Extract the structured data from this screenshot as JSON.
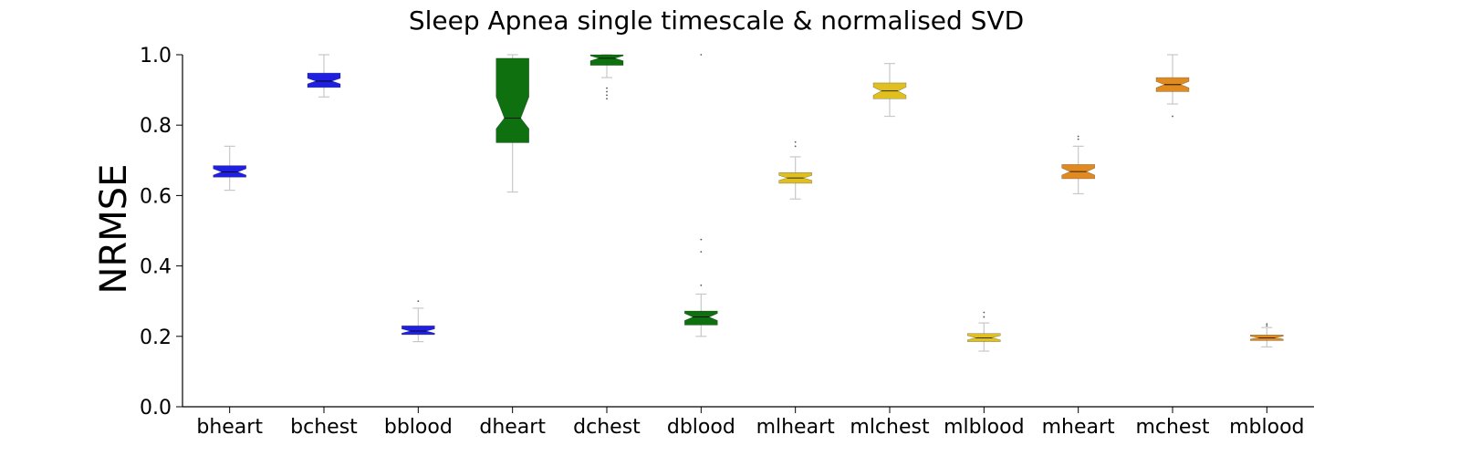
{
  "chart_data": {
    "type": "box",
    "title": "Sleep Apnea single timescale & normalised SVD",
    "ylabel": "NRMSE",
    "xlabel": "",
    "ylim": [
      0.0,
      1.0
    ],
    "yticks": [
      0.0,
      0.2,
      0.4,
      0.6,
      0.8,
      1.0
    ],
    "ytick_labels": [
      "0.0",
      "0.2",
      "0.4",
      "0.6",
      "0.8",
      "1.0"
    ],
    "notched": true,
    "grid": false,
    "categories": [
      "bheart",
      "bchest",
      "bblood",
      "dheart",
      "dchest",
      "dblood",
      "mlheart",
      "mlchest",
      "mlblood",
      "mheart",
      "mchest",
      "mblood"
    ],
    "boxes": [
      {
        "category": "bheart",
        "color": "#2020e0",
        "whislo": 0.615,
        "q1": 0.652,
        "med": 0.667,
        "q3": 0.685,
        "whishi": 0.74,
        "notch_lo": 0.658,
        "notch_hi": 0.676,
        "fliers": []
      },
      {
        "category": "bchest",
        "color": "#2020e0",
        "whislo": 0.88,
        "q1": 0.907,
        "med": 0.925,
        "q3": 0.948,
        "whishi": 1.0,
        "notch_lo": 0.917,
        "notch_hi": 0.933,
        "fliers": []
      },
      {
        "category": "bblood",
        "color": "#2020e0",
        "whislo": 0.185,
        "q1": 0.205,
        "med": 0.215,
        "q3": 0.23,
        "whishi": 0.28,
        "notch_lo": 0.209,
        "notch_hi": 0.221,
        "fliers": [
          0.3
        ]
      },
      {
        "category": "dheart",
        "color": "#0f7010",
        "whislo": 0.61,
        "q1": 0.75,
        "med": 0.82,
        "q3": 0.99,
        "whishi": 1.0,
        "notch_lo": 0.79,
        "notch_hi": 0.88,
        "fliers": []
      },
      {
        "category": "dchest",
        "color": "#0f7010",
        "whislo": 0.935,
        "q1": 0.97,
        "med": 0.99,
        "q3": 1.0,
        "whishi": 1.0,
        "notch_lo": 0.983,
        "notch_hi": 0.997,
        "fliers": [
          0.905,
          0.895,
          0.885,
          0.875
        ]
      },
      {
        "category": "dblood",
        "color": "#0f7010",
        "whislo": 0.2,
        "q1": 0.232,
        "med": 0.255,
        "q3": 0.272,
        "whishi": 0.32,
        "notch_lo": 0.245,
        "notch_hi": 0.265,
        "fliers": [
          0.345,
          0.44,
          0.475,
          1.0
        ]
      },
      {
        "category": "mlheart",
        "color": "#e0c020",
        "whislo": 0.59,
        "q1": 0.635,
        "med": 0.65,
        "q3": 0.665,
        "whishi": 0.71,
        "notch_lo": 0.643,
        "notch_hi": 0.657,
        "fliers": [
          0.74,
          0.752
        ]
      },
      {
        "category": "mlchest",
        "color": "#e0c020",
        "whislo": 0.825,
        "q1": 0.875,
        "med": 0.897,
        "q3": 0.92,
        "whishi": 0.975,
        "notch_lo": 0.885,
        "notch_hi": 0.908,
        "fliers": []
      },
      {
        "category": "mlblood",
        "color": "#e0c020",
        "whislo": 0.158,
        "q1": 0.185,
        "med": 0.196,
        "q3": 0.208,
        "whishi": 0.238,
        "notch_lo": 0.19,
        "notch_hi": 0.202,
        "fliers": [
          0.255,
          0.268
        ]
      },
      {
        "category": "mheart",
        "color": "#e08a20",
        "whislo": 0.605,
        "q1": 0.648,
        "med": 0.668,
        "q3": 0.688,
        "whishi": 0.74,
        "notch_lo": 0.658,
        "notch_hi": 0.678,
        "fliers": [
          0.76,
          0.768
        ]
      },
      {
        "category": "mchest",
        "color": "#e08a20",
        "whislo": 0.86,
        "q1": 0.895,
        "med": 0.915,
        "q3": 0.935,
        "whishi": 1.0,
        "notch_lo": 0.906,
        "notch_hi": 0.924,
        "fliers": [
          0.825
        ]
      },
      {
        "category": "mblood",
        "color": "#e08a20",
        "whislo": 0.17,
        "q1": 0.188,
        "med": 0.196,
        "q3": 0.204,
        "whishi": 0.225,
        "notch_lo": 0.192,
        "notch_hi": 0.2,
        "fliers": [
          0.23,
          0.235
        ]
      }
    ]
  }
}
